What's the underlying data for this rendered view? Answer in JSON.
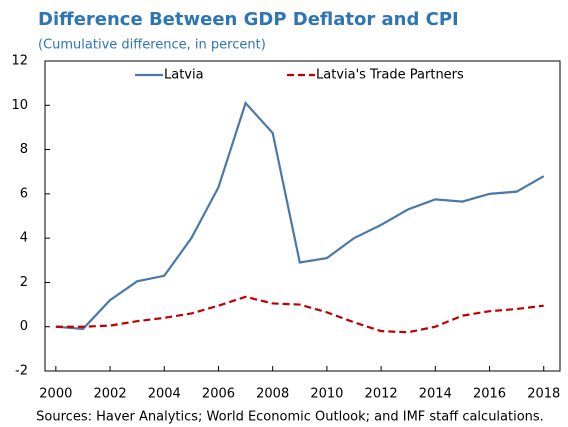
{
  "chart_data": {
    "type": "line",
    "title": "Difference Between GDP Deflator and CPI",
    "subtitle": "(Cumulative difference, in percent)",
    "source": "Sources: Haver Analytics; World Economic Outlook; and IMF staff calculations.",
    "x": [
      2000,
      2001,
      2002,
      2003,
      2004,
      2005,
      2006,
      2007,
      2008,
      2009,
      2010,
      2011,
      2012,
      2013,
      2014,
      2015,
      2016,
      2017,
      2018
    ],
    "series": [
      {
        "name": "Latvia",
        "color": "#4a78a8",
        "dash": "solid",
        "values": [
          0,
          -0.1,
          1.2,
          2.05,
          2.3,
          4.0,
          6.3,
          10.1,
          8.75,
          2.9,
          3.1,
          4.0,
          4.6,
          5.3,
          5.75,
          5.65,
          6.0,
          6.1,
          6.8
        ]
      },
      {
        "name": "Latvia's Trade Partners",
        "color": "#c00000",
        "dash": "dashed",
        "values": [
          0,
          0,
          0.05,
          0.25,
          0.4,
          0.6,
          0.95,
          1.35,
          1.05,
          1.0,
          0.65,
          0.2,
          -0.2,
          -0.25,
          0,
          0.5,
          0.7,
          0.8,
          0.95
        ]
      }
    ],
    "xlim": [
      1999.6,
      2018.6
    ],
    "xticks": [
      2000,
      2002,
      2004,
      2006,
      2008,
      2010,
      2012,
      2014,
      2016,
      2018
    ],
    "ylim": [
      -2,
      12
    ],
    "yticks": [
      -2,
      0,
      2,
      4,
      6,
      8,
      10,
      12
    ],
    "grid": false,
    "legend": "top"
  }
}
